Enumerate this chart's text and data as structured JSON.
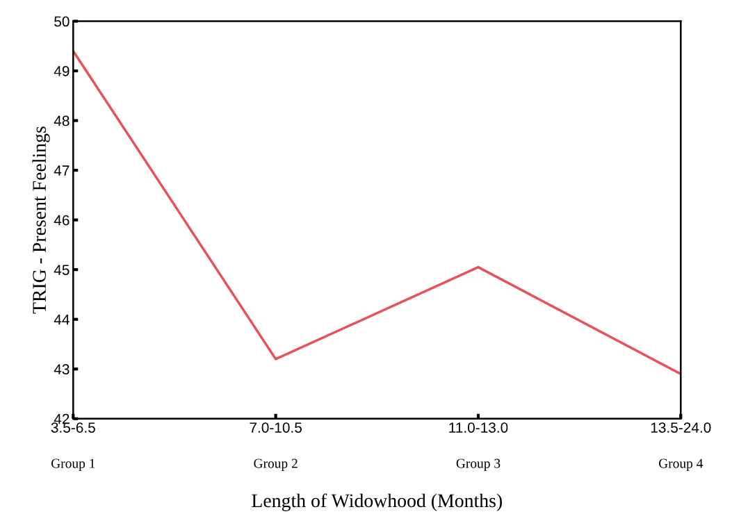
{
  "chart_data": {
    "type": "line",
    "xlabel": "Length of Widowhood (Months)",
    "ylabel": "TRIG - Present Feelings",
    "categories": [
      "3.5-6.5",
      "7.0-10.5",
      "11.0-13.0",
      "13.5-24.0"
    ],
    "series": [
      {
        "color": "#e8505b",
        "values": [
          49.4,
          43.2,
          45.05,
          42.9
        ]
      }
    ],
    "ylim": [
      42,
      50
    ],
    "yticks": [
      42,
      43,
      44,
      45,
      46,
      47,
      48,
      49,
      50
    ],
    "grid": false,
    "legend": false,
    "marker": "none",
    "line_style": "solid",
    "annotations": [
      "Group 1",
      "Group 2",
      "Group 3",
      "Group 4"
    ]
  }
}
